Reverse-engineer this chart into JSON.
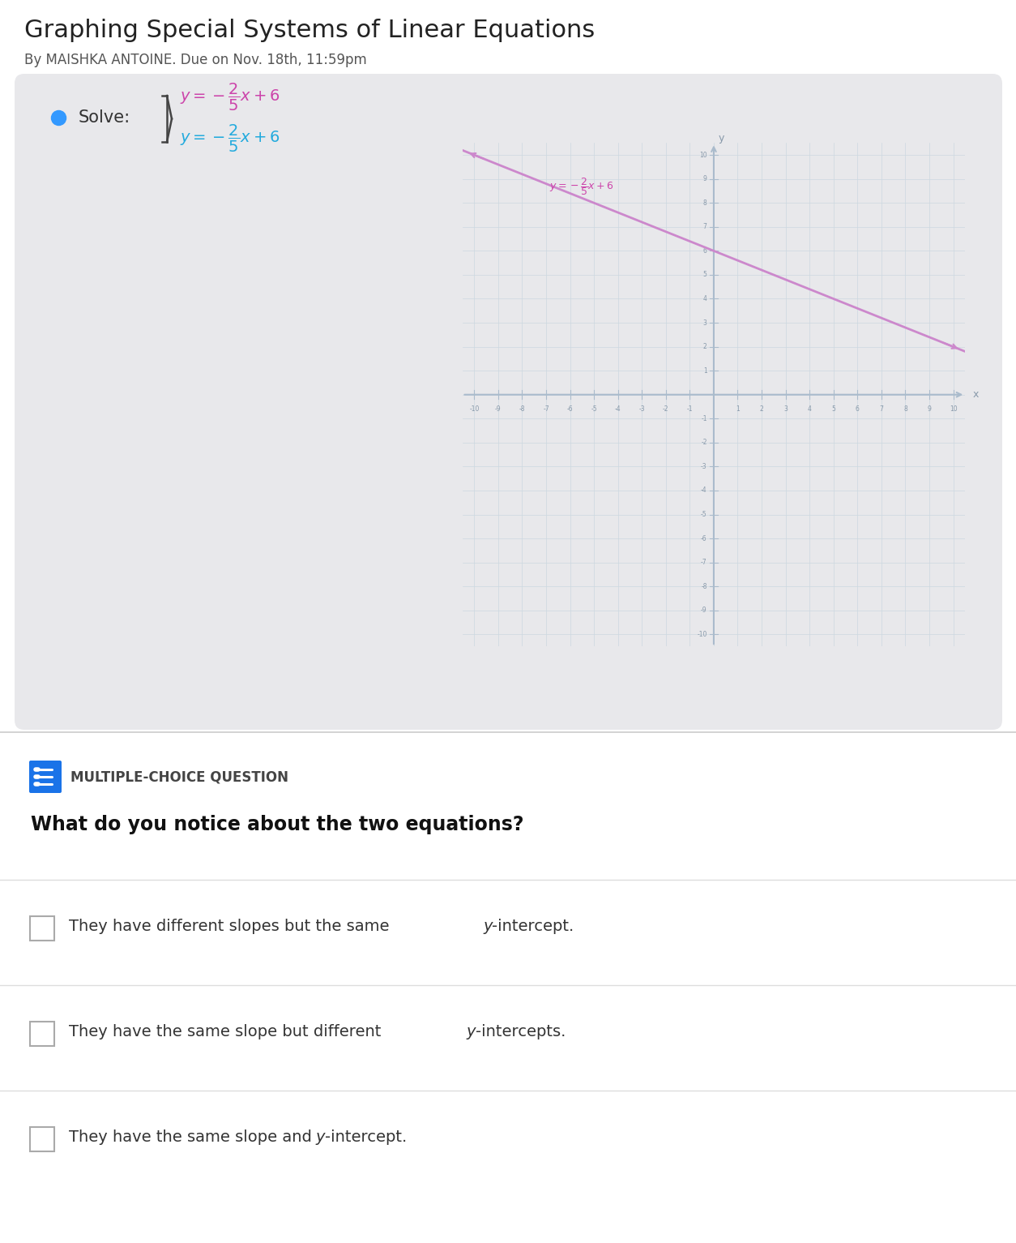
{
  "title": "Graphing Special Systems of Linear Equations",
  "subtitle": "By MAISHKA ANTOINE. Due on Nov. 18th, 11:59pm",
  "title_fontsize": 22,
  "subtitle_fontsize": 12,
  "card_bg": "#e8e8eb",
  "white_bg": "#ffffff",
  "eq1_color": "#cc44aa",
  "eq2_color": "#22aadd",
  "line_color": "#cc88cc",
  "axis_color": "#aabbcc",
  "grid_color": "#ccd8e0",
  "slope": -0.4,
  "intercept": 6,
  "question_header": "MULTIPLE-CHOICE QUESTION",
  "question_text": "What do you notice about the two equations?",
  "blue_icon_color": "#1a73e8",
  "divider_color": "#cccccc",
  "choice_line_color": "#dddddd",
  "checkbox_edge": "#aaaaaa"
}
